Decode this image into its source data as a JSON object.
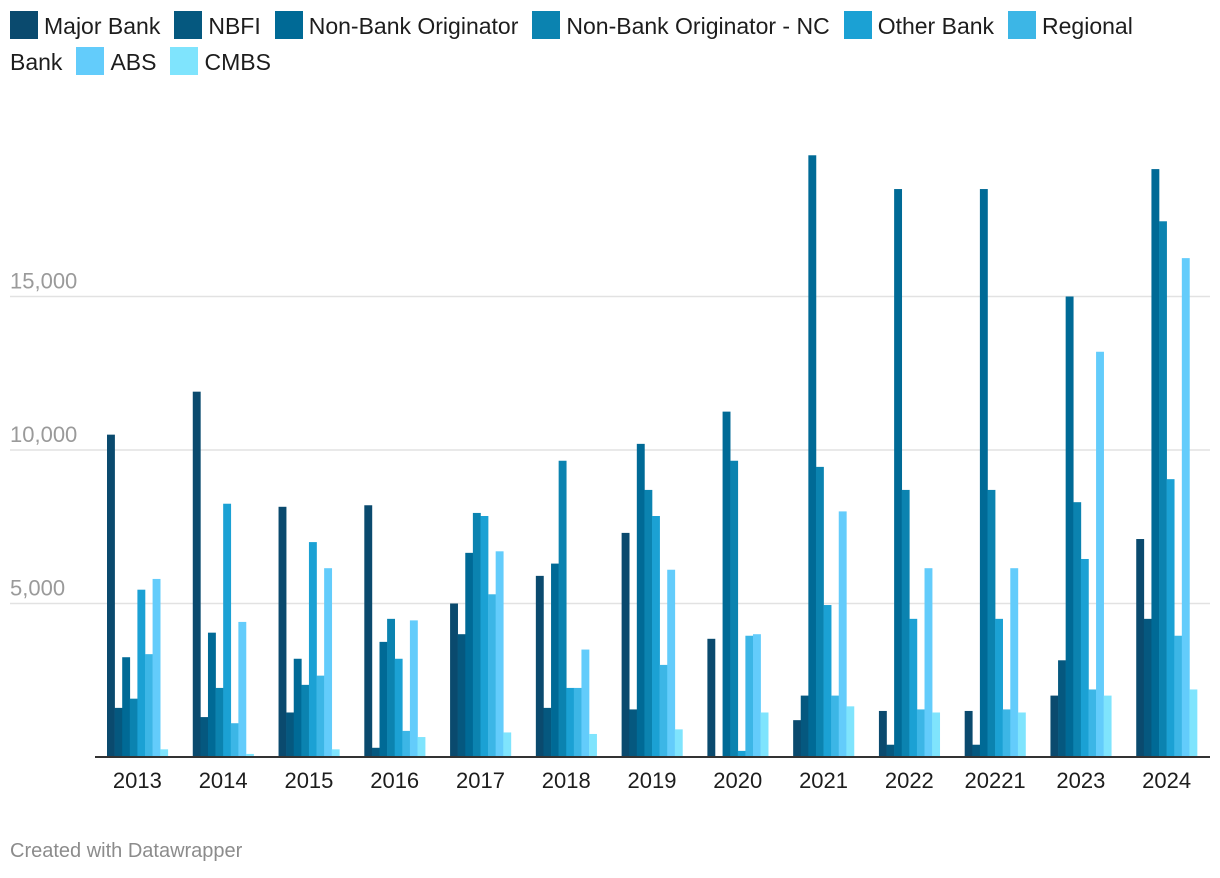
{
  "chart_data": {
    "type": "bar",
    "categories": [
      "2013",
      "2014",
      "2015",
      "2016",
      "2017",
      "2018",
      "2019",
      "2020",
      "2021",
      "2022",
      "20221",
      "2023",
      "2024"
    ],
    "series": [
      {
        "name": "Major Bank",
        "color": "#0a4a6e",
        "values": [
          10500,
          11900,
          8150,
          8200,
          5000,
          5900,
          7300,
          3850,
          1200,
          1500,
          1500,
          2000,
          7100
        ]
      },
      {
        "name": "NBFI",
        "color": "#05587f",
        "values": [
          1600,
          1300,
          1450,
          300,
          4000,
          1600,
          1550,
          0,
          2000,
          400,
          400,
          3150,
          4500
        ]
      },
      {
        "name": "Non-Bank Originator",
        "color": "#006a96",
        "values": [
          3250,
          4050,
          3200,
          3750,
          6650,
          6300,
          10200,
          11250,
          19600,
          18500,
          18500,
          15000,
          19150
        ]
      },
      {
        "name": "Non-Bank Originator - NC",
        "color": "#0b83b0",
        "values": [
          1900,
          2250,
          2350,
          4500,
          7950,
          9650,
          8700,
          9650,
          9450,
          8700,
          8700,
          8300,
          17450
        ]
      },
      {
        "name": "Other Bank",
        "color": "#1ba1d4",
        "values": [
          5450,
          8250,
          7000,
          3200,
          7850,
          2250,
          7850,
          200,
          4950,
          4500,
          4500,
          6450,
          9050
        ]
      },
      {
        "name": "Regional Bank",
        "color": "#3cb6e6",
        "values": [
          3350,
          1100,
          2650,
          850,
          5300,
          2250,
          3000,
          3950,
          2000,
          1550,
          1550,
          2200,
          3950
        ]
      },
      {
        "name": "ABS",
        "color": "#63ccfb",
        "values": [
          5800,
          4400,
          6150,
          4450,
          6700,
          3500,
          6100,
          4000,
          8000,
          6150,
          6150,
          13200,
          16250
        ]
      },
      {
        "name": "CMBS",
        "color": "#7fe4fd",
        "values": [
          250,
          100,
          250,
          650,
          800,
          750,
          900,
          1450,
          1650,
          1450,
          1450,
          2000,
          2200
        ]
      }
    ],
    "ylim": [
      0,
      20000
    ],
    "yticks": [
      5000,
      10000,
      15000
    ],
    "ytick_labels": [
      "5,000",
      "10,000",
      "15,000"
    ],
    "grid": true,
    "legend": "top"
  },
  "footer": "Created with Datawrapper"
}
